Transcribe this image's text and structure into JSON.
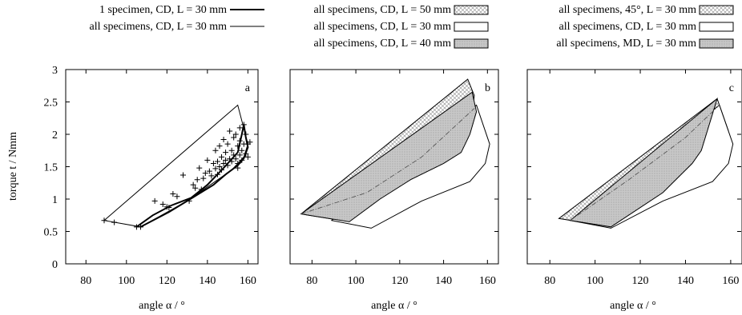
{
  "chart_data": {
    "type": "line",
    "y_label": "torque t / Nmm",
    "x_label": "angle α / °",
    "x_range": [
      70,
      165
    ],
    "y_range": [
      0,
      3
    ],
    "x_ticks": [
      80,
      100,
      120,
      140,
      160
    ],
    "y_ticks": [
      0,
      0.5,
      1,
      1.5,
      2,
      2.5,
      3
    ],
    "panels": [
      {
        "id": "a",
        "legend": [
          {
            "label": "1 specimen, CD, L = 30 mm",
            "style": "thick-line"
          },
          {
            "label": "all specimens, CD, L = 30 mm",
            "style": "thin-line"
          }
        ],
        "regions": [
          {
            "name": "all specimens, CD, L = 30 mm",
            "style": "outline",
            "points": [
              [
                89,
                0.67
              ],
              [
                155,
                2.45
              ],
              [
                160,
                1.85
              ],
              [
                158,
                1.65
              ],
              [
                152,
                1.45
              ],
              [
                130,
                0.97
              ],
              [
                107,
                0.57
              ],
              [
                89,
                0.67
              ]
            ]
          }
        ],
        "lines": [
          {
            "name": "1 specimen, CD, L = 30 mm",
            "style": "thick",
            "points": [
              [
                105,
                0.57
              ],
              [
                113,
                0.75
              ],
              [
                122,
                0.9
              ],
              [
                132,
                1.02
              ],
              [
                140,
                1.22
              ],
              [
                148,
                1.48
              ],
              [
                155,
                1.72
              ],
              [
                157,
                2.0
              ],
              [
                158,
                2.15
              ],
              [
                159,
                1.95
              ],
              [
                160,
                1.8
              ],
              [
                158,
                1.63
              ],
              [
                155,
                1.52
              ],
              [
                149,
                1.38
              ],
              [
                143,
                1.22
              ],
              [
                130,
                0.97
              ],
              [
                121,
                0.8
              ],
              [
                107,
                0.57
              ]
            ]
          }
        ],
        "scatter": [
          [
            89,
            0.67
          ],
          [
            94,
            0.64
          ],
          [
            105,
            0.57
          ],
          [
            107,
            0.57
          ],
          [
            114,
            0.97
          ],
          [
            118,
            0.92
          ],
          [
            120,
            0.88
          ],
          [
            121,
            0.87
          ],
          [
            123,
            1.08
          ],
          [
            125,
            1.04
          ],
          [
            128,
            1.37
          ],
          [
            131,
            0.97
          ],
          [
            133,
            1.22
          ],
          [
            134,
            1.17
          ],
          [
            135,
            1.3
          ],
          [
            136,
            1.48
          ],
          [
            137,
            1.15
          ],
          [
            138,
            1.32
          ],
          [
            139,
            1.4
          ],
          [
            140,
            1.6
          ],
          [
            141,
            1.43
          ],
          [
            142,
            1.36
          ],
          [
            143,
            1.55
          ],
          [
            144,
            1.47
          ],
          [
            144,
            1.75
          ],
          [
            145,
            1.38
          ],
          [
            145,
            1.58
          ],
          [
            146,
            1.82
          ],
          [
            146,
            1.5
          ],
          [
            147,
            1.45
          ],
          [
            147,
            1.65
          ],
          [
            148,
            1.92
          ],
          [
            148,
            1.55
          ],
          [
            149,
            1.72
          ],
          [
            149,
            1.6
          ],
          [
            150,
            1.52
          ],
          [
            150,
            1.85
          ],
          [
            151,
            1.62
          ],
          [
            151,
            2.05
          ],
          [
            152,
            1.58
          ],
          [
            152,
            1.75
          ],
          [
            153,
            1.95
          ],
          [
            153,
            1.68
          ],
          [
            154,
            1.62
          ],
          [
            154,
            2.0
          ],
          [
            155,
            1.82
          ],
          [
            155,
            1.55
          ],
          [
            155,
            1.48
          ],
          [
            156,
            1.9
          ],
          [
            156,
            1.68
          ],
          [
            156,
            2.1
          ],
          [
            157,
            1.6
          ],
          [
            157,
            1.75
          ],
          [
            158,
            1.85
          ],
          [
            158,
            2.15
          ],
          [
            159,
            1.7
          ],
          [
            159,
            2.0
          ],
          [
            160,
            1.65
          ],
          [
            160,
            1.85
          ],
          [
            161,
            1.88
          ]
        ]
      },
      {
        "id": "b",
        "legend": [
          {
            "label": "all specimens, CD, L = 50 mm",
            "style": "crosshatch-fill"
          },
          {
            "label": "all specimens, CD, L = 30 mm",
            "style": "white-fill"
          },
          {
            "label": "all specimens, CD, L = 40 mm",
            "style": "dotted-grey-fill"
          }
        ],
        "regions": [
          {
            "name": "all specimens, CD, L = 50 mm",
            "style": "crosshatch",
            "points": [
              [
                75,
                0.77
              ],
              [
                151,
                2.85
              ],
              [
                154,
                2.6
              ],
              [
                152,
                1.95
              ],
              [
                145,
                1.6
              ],
              [
                120,
                1.1
              ],
              [
                97,
                0.65
              ],
              [
                75,
                0.77
              ]
            ]
          },
          {
            "name": "all specimens, CD, L = 30 mm",
            "style": "white",
            "points": [
              [
                89,
                0.67
              ],
              [
                155,
                2.45
              ],
              [
                161,
                1.85
              ],
              [
                159,
                1.55
              ],
              [
                152,
                1.27
              ],
              [
                130,
                0.97
              ],
              [
                107,
                0.55
              ],
              [
                89,
                0.67
              ]
            ]
          },
          {
            "name": "all specimens, CD, L = 40 mm",
            "style": "dotted-grey",
            "points": [
              [
                75,
                0.77
              ],
              [
                153,
                2.65
              ],
              [
                155,
                2.35
              ],
              [
                152,
                2.0
              ],
              [
                148,
                1.72
              ],
              [
                140,
                1.55
              ],
              [
                125,
                1.3
              ],
              [
                111,
                1.0
              ],
              [
                97,
                0.65
              ],
              [
                75,
                0.77
              ]
            ]
          }
        ],
        "lines": [
          {
            "name": "all specimens, CD, L = 40 mm",
            "style": "dash-dot",
            "points": [
              [
                75,
                0.77
              ],
              [
                105,
                1.1
              ],
              [
                130,
                1.65
              ],
              [
                154,
                2.4
              ]
            ]
          }
        ]
      },
      {
        "id": "c",
        "legend": [
          {
            "label": "all specimens, 45°, L = 30 mm",
            "style": "crosshatch-fill"
          },
          {
            "label": "all specimens, CD, L = 30 mm",
            "style": "white-fill"
          },
          {
            "label": "all specimens, MD, L = 30 mm",
            "style": "dotted-grey-fill"
          }
        ],
        "regions": [
          {
            "name": "all specimens, 45°, L = 30 mm",
            "style": "crosshatch",
            "points": [
              [
                84,
                0.7
              ],
              [
                154,
                2.55
              ],
              [
                159,
                2.05
              ],
              [
                155,
                1.8
              ],
              [
                148,
                1.45
              ],
              [
                133,
                1.1
              ],
              [
                107,
                0.57
              ],
              [
                84,
                0.7
              ]
            ]
          },
          {
            "name": "all specimens, CD, L = 30 mm",
            "style": "white",
            "points": [
              [
                89,
                0.67
              ],
              [
                155,
                2.45
              ],
              [
                161,
                1.85
              ],
              [
                159,
                1.55
              ],
              [
                152,
                1.27
              ],
              [
                130,
                0.97
              ],
              [
                107,
                0.55
              ],
              [
                89,
                0.67
              ]
            ]
          },
          {
            "name": "all specimens, MD, L = 30 mm",
            "style": "dotted-grey",
            "points": [
              [
                89,
                0.67
              ],
              [
                154,
                2.55
              ],
              [
                147,
                1.75
              ],
              [
                143,
                1.55
              ],
              [
                130,
                1.1
              ],
              [
                107,
                0.57
              ],
              [
                89,
                0.67
              ]
            ]
          }
        ],
        "lines": [
          {
            "name": "all specimens, MD, L = 30 mm",
            "style": "dash-dot",
            "points": [
              [
                89,
                0.67
              ],
              [
                115,
                1.3
              ],
              [
                140,
                1.95
              ],
              [
                155,
                2.45
              ]
            ]
          }
        ]
      }
    ]
  }
}
